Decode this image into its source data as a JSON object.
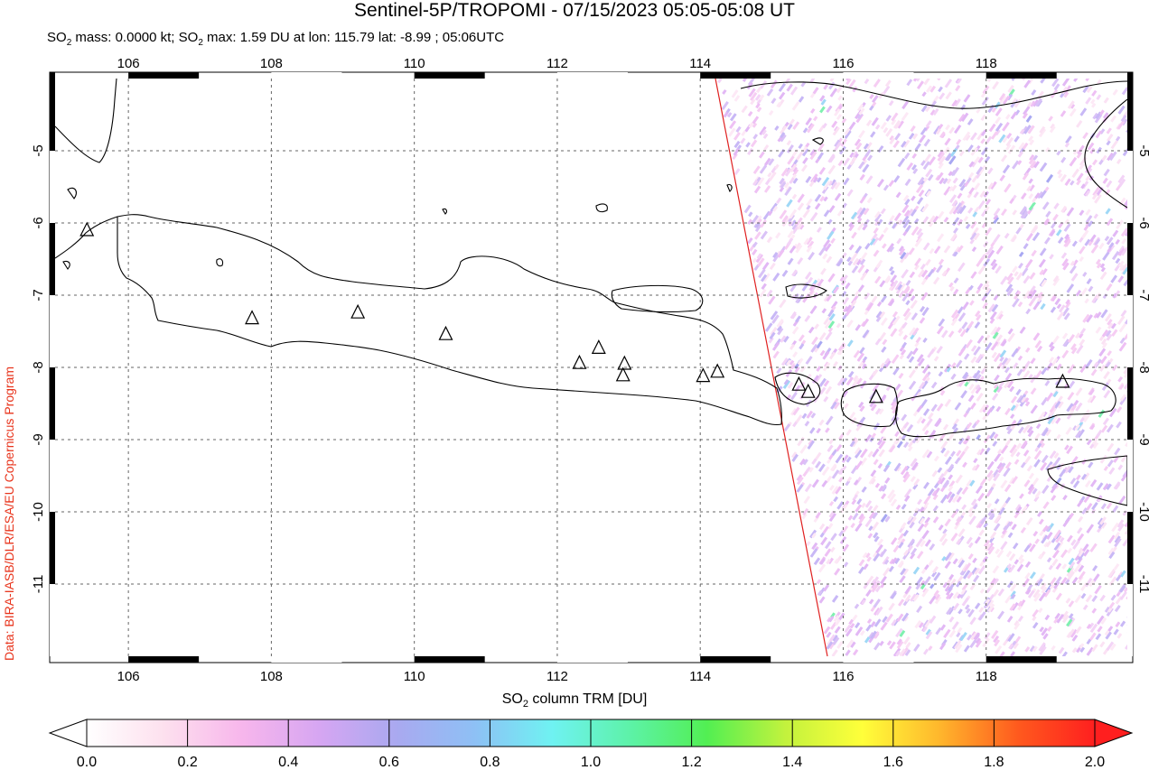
{
  "header": {
    "title": "Sentinel-5P/TROPOMI - 07/15/2023 05:05-05:08 UT",
    "subtitle_parts": [
      "SO",
      "2",
      " mass: 0.0000 kt; SO",
      "2",
      " max: 1.59 DU at lon: 115.79 lat: -8.99 ; 05:06UTC"
    ]
  },
  "credit": "Data: BIRA-IASB/DLR/ESA/EU Copernicus Program",
  "map": {
    "lon_range": [
      105,
      120
    ],
    "lat_range": [
      -12,
      -4
    ],
    "x_ticks": [
      "106",
      "108",
      "110",
      "112",
      "114",
      "116",
      "118"
    ],
    "y_ticks": [
      "-5",
      "-6",
      "-7",
      "-8",
      "-9",
      "-10",
      "-11"
    ],
    "grid": "dashed",
    "swath_edge_color": "#e02020",
    "volcano_marker": "triangle-icon",
    "volcanoes": [
      {
        "lon": 105.42,
        "lat": -6.1
      },
      {
        "lon": 107.73,
        "lat": -7.32
      },
      {
        "lon": 109.21,
        "lat": -7.24
      },
      {
        "lon": 110.44,
        "lat": -7.54
      },
      {
        "lon": 112.31,
        "lat": -7.94
      },
      {
        "lon": 112.58,
        "lat": -7.73
      },
      {
        "lon": 112.94,
        "lat": -7.95
      },
      {
        "lon": 112.92,
        "lat": -8.11
      },
      {
        "lon": 114.04,
        "lat": -8.12
      },
      {
        "lon": 114.24,
        "lat": -8.06
      },
      {
        "lon": 115.38,
        "lat": -8.24
      },
      {
        "lon": 115.51,
        "lat": -8.34
      },
      {
        "lon": 116.46,
        "lat": -8.41
      },
      {
        "lon": 119.07,
        "lat": -8.2
      }
    ]
  },
  "colorbar": {
    "label_parts": [
      "SO",
      "2",
      " column TRM [DU]"
    ],
    "ticks": [
      "0.0",
      "0.2",
      "0.4",
      "0.6",
      "0.8",
      "1.0",
      "1.2",
      "1.4",
      "1.6",
      "1.8",
      "2.0"
    ],
    "range": [
      0,
      2
    ],
    "colors": [
      "#ffffff",
      "#fde0ee",
      "#f7b6ec",
      "#d6a6f2",
      "#a9a9f0",
      "#8ec0f5",
      "#6ff2f2",
      "#5df2a8",
      "#52ef52",
      "#c2f23d",
      "#ffff3a",
      "#ffb62c",
      "#ff5a1e",
      "#ff1f1f"
    ]
  }
}
